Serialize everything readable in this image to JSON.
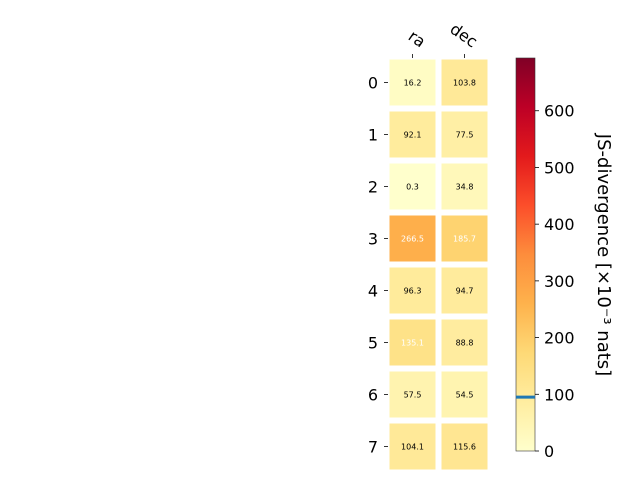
{
  "chart_data": {
    "type": "heatmap",
    "columns": [
      "ra",
      "dec"
    ],
    "rows": [
      "0",
      "1",
      "2",
      "3",
      "4",
      "5",
      "6",
      "7"
    ],
    "values": [
      [
        16.2,
        103.8
      ],
      [
        92.1,
        77.5
      ],
      [
        0.3,
        34.8
      ],
      [
        266.5,
        185.7
      ],
      [
        96.3,
        94.7
      ],
      [
        135.1,
        88.8
      ],
      [
        57.5,
        54.5
      ],
      [
        104.1,
        115.6
      ]
    ],
    "value_labels": [
      [
        "16.2",
        "103.8"
      ],
      [
        "92.1",
        "77.5"
      ],
      [
        "0.3",
        "34.8"
      ],
      [
        "266.5",
        "185.7"
      ],
      [
        "96.3",
        "94.7"
      ],
      [
        "135.1",
        "88.8"
      ],
      [
        "57.5",
        "54.5"
      ],
      [
        "104.1",
        "115.6"
      ]
    ],
    "white_label_cells": [
      [
        3,
        0
      ],
      [
        3,
        1
      ],
      [
        5,
        0
      ]
    ],
    "colormap": "YlOrRd",
    "colorbar": {
      "label": "JS-divergence [×10⁻³ nats]",
      "range": [
        0,
        693
      ],
      "ticks": [
        0,
        100,
        200,
        300,
        400,
        500,
        600
      ],
      "tick_labels": [
        "0",
        "100",
        "200",
        "300",
        "400",
        "500",
        "600"
      ],
      "marker_value": 95,
      "marker_color": "#1f77b4",
      "placement": "right"
    },
    "grid": false
  }
}
